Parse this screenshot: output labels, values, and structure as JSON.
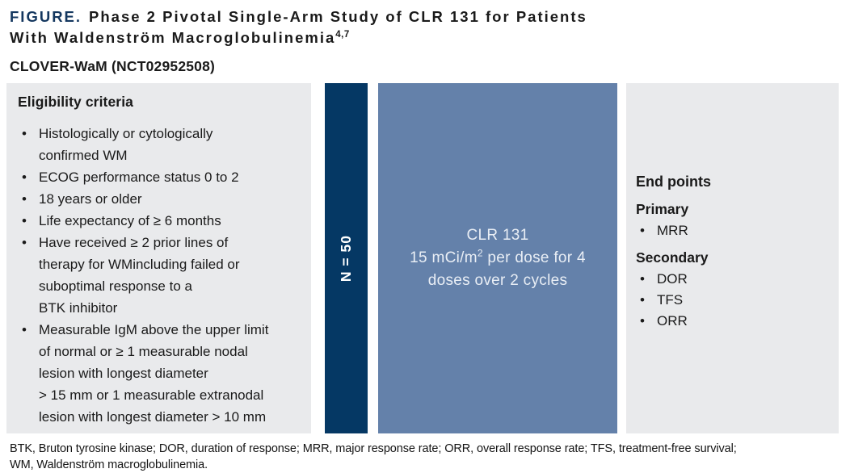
{
  "title": {
    "figure_label": "FIGURE.",
    "line1": "Phase 2 Pivotal Single-Arm Study of CLR 131 for Patients",
    "line2": "With Waldenström Macroglobulinemia",
    "superscript": "4,7"
  },
  "study_name": "CLOVER-WaM (NCT02952508)",
  "eligibility": {
    "heading": "Eligibility criteria",
    "items": [
      "Histologically or cytologically\nconfirmed WM",
      "ECOG performance status 0 to 2",
      "18 years or older",
      "Life expectancy of ≥ 6 months",
      "Have received ≥ 2 prior lines of\ntherapy for WMincluding failed or\nsuboptimal response to a\nBTK inhibitor",
      "Measurable IgM above the upper limit\nof normal or ≥ 1 measurable nodal\nlesion with longest diameter\n> 15 mm or 1 measurable extranodal\nlesion with longest diameter > 10 mm"
    ]
  },
  "enrollment": {
    "label": "N = 50"
  },
  "treatment": {
    "line1": "CLR 131",
    "line2_pre": "15 mCi/m",
    "line2_sup": "2",
    "line2_post": " per dose for 4",
    "line3": "doses over 2 cycles"
  },
  "endpoints": {
    "heading": "End points",
    "primary_label": "Primary",
    "primary_items": [
      "MRR"
    ],
    "secondary_label": "Secondary",
    "secondary_items": [
      "DOR",
      "TFS",
      "ORR"
    ]
  },
  "footnote": {
    "line1": "BTK, Bruton tyrosine kinase; DOR, duration of response; MRR, major response rate; ORR, overall response rate; TFS, treatment-free survival;",
    "line2": "WM, Waldenström macroglobulinemia."
  },
  "colors": {
    "navy_bar": "#053864",
    "treatment_blue": "#6481aa",
    "panel_gray": "#e9eaec",
    "figure_label_navy": "#14375f"
  }
}
